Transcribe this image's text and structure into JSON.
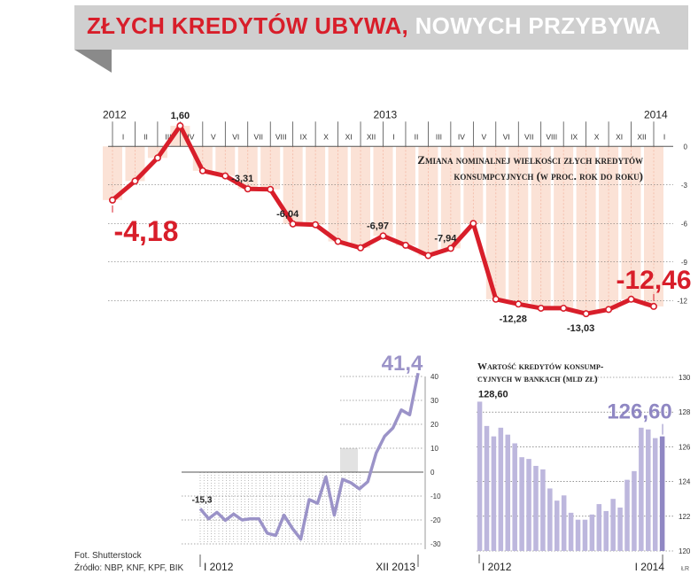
{
  "title": {
    "part1": "ZŁYCH KREDYTÓW UBYWA,",
    "part2": "NOWYCH PRZYBYWA"
  },
  "footer": {
    "photo": "Fot. Shutterstock",
    "source": "Źródło: NBP, KNF, KPF, BIK"
  },
  "colors": {
    "red": "#d81e2a",
    "purple": "#9b93c8",
    "bar": "#bdb7dd",
    "bar_last": "#8f87c3",
    "fill": "#fbe2d6"
  },
  "chart_data": [
    {
      "type": "line",
      "title": "Zmiana nominalnej wielkości złych kredytów konsumpcyjnych (w proc. rok do roku)",
      "title_line1": "Zmiana nominalnej wielkości złych kredytów",
      "title_line2": "konsumpcyjnych (w proc. rok do roku)",
      "year_labels": [
        {
          "label": "2012",
          "index": 0
        },
        {
          "label": "2013",
          "index": 12
        },
        {
          "label": "2014",
          "index": 24
        }
      ],
      "categories": [
        "I",
        "II",
        "III",
        "IV",
        "V",
        "VI",
        "VII",
        "VIII",
        "IX",
        "X",
        "XI",
        "XII",
        "I",
        "II",
        "III",
        "IV",
        "V",
        "VI",
        "VII",
        "VIII",
        "IX",
        "X",
        "XI",
        "XII",
        "I"
      ],
      "values": [
        -4.18,
        -2.7,
        -0.9,
        1.6,
        -1.9,
        -2.3,
        -3.31,
        -3.35,
        -6.04,
        -6.1,
        -7.4,
        -7.9,
        -6.97,
        -7.7,
        -8.5,
        -7.94,
        -6.0,
        -11.9,
        -12.28,
        -12.6,
        -12.6,
        -13.03,
        -12.7,
        -11.9,
        -12.46
      ],
      "ylim": [
        -13.5,
        2.5
      ],
      "yticks": [
        0,
        -3,
        -6,
        -9,
        -12
      ],
      "data_labels": [
        {
          "index": 0,
          "text": "-4,18",
          "big": true
        },
        {
          "index": 3,
          "text": "1,60"
        },
        {
          "index": 6,
          "text": "-3,31"
        },
        {
          "index": 8,
          "text": "-6,04"
        },
        {
          "index": 12,
          "text": "-6,97"
        },
        {
          "index": 15,
          "text": "-7,94"
        },
        {
          "index": 18,
          "text": "-12,28"
        },
        {
          "index": 21,
          "text": "-13,03"
        },
        {
          "index": 24,
          "text": "-12,46",
          "big": true
        }
      ]
    },
    {
      "type": "line",
      "x_start_label": "I 2012",
      "x_end_label": "XII 2013",
      "values": [
        -15.3,
        -19.5,
        -16.8,
        -20.2,
        -17.5,
        -20.0,
        -19.5,
        -19.5,
        -25.5,
        -26.5,
        -18.0,
        -23.5,
        -28.0,
        -11.5,
        -13.0,
        -2.0,
        -18.0,
        -3.0,
        -4.5,
        -7.0,
        -4.0,
        8.0,
        15.0,
        18.5,
        26.0,
        24.0,
        41.4
      ],
      "ylim": [
        -30,
        40
      ],
      "yticks": [
        40,
        30,
        20,
        10,
        0,
        -10,
        -20,
        -30
      ],
      "data_labels": [
        {
          "index": 0,
          "text": "-15,3"
        },
        {
          "index": 26,
          "text": "41,4",
          "big": true
        }
      ]
    },
    {
      "type": "bar",
      "title_line1": "Wartość kredytów konsump-",
      "title_line2": "cyjnych w bankach (mld zł)",
      "x_start_label": "I 2012",
      "x_end_label": "I 2014",
      "unit_label": "ŁR",
      "values": [
        128.6,
        127.2,
        126.6,
        127.1,
        126.7,
        126.2,
        125.4,
        125.3,
        124.9,
        124.7,
        123.6,
        122.9,
        123.2,
        122.2,
        121.8,
        121.8,
        122.1,
        122.7,
        122.3,
        123.0,
        122.5,
        124.1,
        124.6,
        127.1,
        127.0,
        126.5,
        126.6
      ],
      "ylim": [
        120,
        130
      ],
      "yticks": [
        130,
        128,
        126,
        124,
        122,
        120
      ],
      "data_labels": [
        {
          "index": 0,
          "text": "128,60"
        },
        {
          "index": 26,
          "text": "126,60",
          "big": true
        }
      ]
    }
  ]
}
